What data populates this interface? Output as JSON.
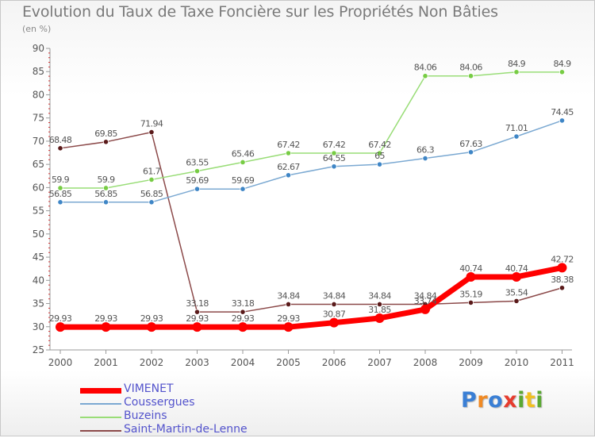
{
  "title": "Evolution du Taux de Taxe Foncière sur les Propriétés Non Bâties",
  "subtitle": "(en %)",
  "logo": [
    "P",
    "r",
    "o",
    "x",
    "i",
    "t",
    "i"
  ],
  "chart_data": {
    "type": "line",
    "x": [
      "2000",
      "2001",
      "2002",
      "2003",
      "2004",
      "2005",
      "2006",
      "2007",
      "2008",
      "2009",
      "2010",
      "2011"
    ],
    "ylim": [
      25,
      90
    ],
    "yticks": [
      25,
      30,
      35,
      40,
      45,
      50,
      55,
      60,
      65,
      70,
      75,
      80,
      85,
      90
    ],
    "grid": false,
    "legend": "bottom-left",
    "series": [
      {
        "name": "VIMENET",
        "color": "#ff0000",
        "values": [
          29.93,
          29.93,
          29.93,
          29.93,
          29.93,
          29.93,
          30.87,
          31.85,
          33.74,
          40.74,
          40.74,
          42.72
        ],
        "labels": [
          "29.93",
          "29.93",
          "29.93",
          "29.93",
          "29.93",
          "29.93",
          "30.87",
          "31.85",
          "33.74",
          "40.74",
          "40.74",
          "42.72"
        ]
      },
      {
        "name": "Coussergues",
        "color": "#7ba9d2",
        "marker": "#3f86c6",
        "values": [
          56.85,
          56.85,
          56.85,
          59.69,
          59.69,
          62.67,
          64.55,
          65,
          66.3,
          67.63,
          71.01,
          74.45
        ],
        "labels": [
          "56.85",
          "56.85",
          "56.85",
          "59.69",
          "59.69",
          "62.67",
          "64.55",
          "65",
          "66.3",
          "67.63",
          "71.01",
          "74.45"
        ]
      },
      {
        "name": "Buzeins",
        "color": "#99dd77",
        "marker": "#77cc44",
        "values": [
          59.9,
          59.9,
          61.7,
          63.55,
          65.46,
          67.42,
          67.42,
          67.42,
          84.06,
          84.06,
          84.9,
          84.9
        ],
        "labels": [
          "59.9",
          "59.9",
          "61.7",
          "63.55",
          "65.46",
          "67.42",
          "67.42",
          "67.42",
          "84.06",
          "84.06",
          "84.9",
          "84.9"
        ]
      },
      {
        "name": "Saint-Martin-de-Lenne",
        "color": "#8c4a4a",
        "marker": "#5a1a1a",
        "values": [
          68.48,
          69.85,
          71.94,
          33.18,
          33.18,
          34.84,
          34.84,
          34.84,
          34.84,
          35.19,
          35.54,
          38.38
        ],
        "labels": [
          "68.48",
          "69.85",
          "71.94",
          "33.18",
          "33.18",
          "34.84",
          "34.84",
          "34.84",
          "34.84",
          "35.19",
          "35.54",
          "38.38"
        ]
      }
    ]
  }
}
